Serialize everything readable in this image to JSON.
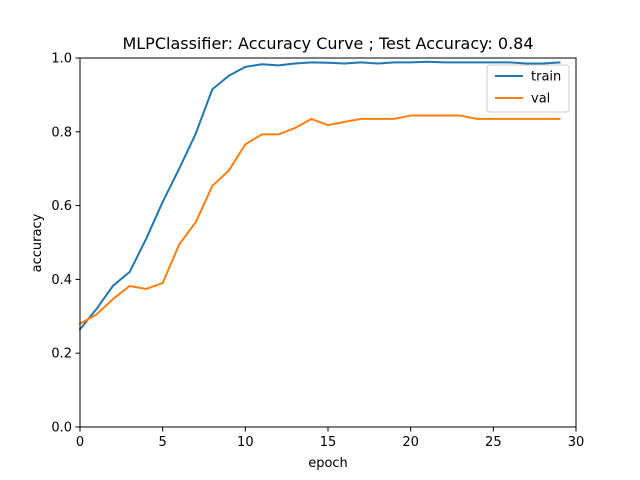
{
  "chart_data": {
    "type": "line",
    "title": "MLPClassifier: Accuracy Curve ; Test Accuracy: 0.84",
    "xlabel": "epoch",
    "ylabel": "accuracy",
    "xlim": [
      0,
      30
    ],
    "ylim": [
      0.0,
      1.0
    ],
    "xticks": [
      0,
      5,
      10,
      15,
      20,
      25,
      30
    ],
    "yticks": [
      0.0,
      0.2,
      0.4,
      0.6,
      0.8,
      1.0
    ],
    "xtick_labels": [
      "0",
      "5",
      "10",
      "15",
      "20",
      "25",
      "30"
    ],
    "ytick_labels": [
      "0.0",
      "0.2",
      "0.4",
      "0.6",
      "0.8",
      "1.0"
    ],
    "grid": false,
    "legend_position": "top-right",
    "x": [
      0,
      1,
      2,
      3,
      4,
      5,
      6,
      7,
      8,
      9,
      10,
      11,
      12,
      13,
      14,
      15,
      16,
      17,
      18,
      19,
      20,
      21,
      22,
      23,
      24,
      25,
      26,
      27,
      28,
      29
    ],
    "series": [
      {
        "name": "train",
        "color": "#1f77b4",
        "values": [
          0.265,
          0.32,
          0.383,
          0.42,
          0.51,
          0.61,
          0.7,
          0.795,
          0.915,
          0.952,
          0.976,
          0.983,
          0.98,
          0.985,
          0.988,
          0.987,
          0.985,
          0.988,
          0.985,
          0.988,
          0.988,
          0.99,
          0.988,
          0.988,
          0.988,
          0.988,
          0.988,
          0.985,
          0.985,
          0.988
        ]
      },
      {
        "name": "val",
        "color": "#ff7f0e",
        "values": [
          0.28,
          0.305,
          0.347,
          0.382,
          0.374,
          0.39,
          0.495,
          0.555,
          0.653,
          0.695,
          0.766,
          0.793,
          0.793,
          0.81,
          0.835,
          0.818,
          0.827,
          0.835,
          0.835,
          0.835,
          0.844,
          0.844,
          0.844,
          0.844,
          0.835,
          0.835,
          0.835,
          0.835,
          0.835,
          0.835
        ]
      }
    ]
  }
}
